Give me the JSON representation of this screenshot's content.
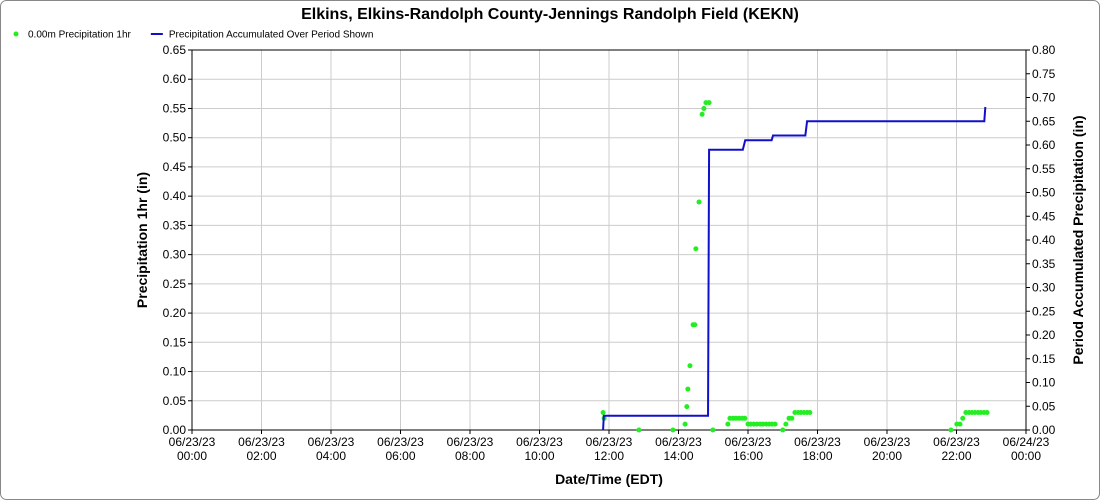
{
  "chart_data": {
    "type": "combo",
    "title": "Elkins, Elkins-Randolph County-Jennings Randolph Field (KEKN)",
    "x_label": "Date/Time (EDT)",
    "y_label": "Precipitation 1hr (in)",
    "y2_label": "Period Accumulated Precipitation (in)",
    "grid": true,
    "legend": "top-left",
    "xlim": [
      0,
      24
    ],
    "xticks": [
      {
        "value": 0,
        "label": "06/23/23 00:00"
      },
      {
        "value": 2,
        "label": "06/23/23 02:00"
      },
      {
        "value": 4,
        "label": "06/23/23 04:00"
      },
      {
        "value": 6,
        "label": "06/23/23 06:00"
      },
      {
        "value": 8,
        "label": "06/23/23 08:00"
      },
      {
        "value": 10,
        "label": "06/23/23 10:00"
      },
      {
        "value": 12,
        "label": "06/23/23 12:00"
      },
      {
        "value": 14,
        "label": "06/23/23 14:00"
      },
      {
        "value": 16,
        "label": "06/23/23 16:00"
      },
      {
        "value": 18,
        "label": "06/23/23 18:00"
      },
      {
        "value": 20,
        "label": "06/23/23 20:00"
      },
      {
        "value": 22,
        "label": "06/23/23 22:00"
      },
      {
        "value": 24,
        "label": "06/24/23 00:00"
      }
    ],
    "ylim": [
      0,
      0.65
    ],
    "yticks": [
      {
        "value": 0,
        "label": "0.00"
      },
      {
        "value": 0.05,
        "label": "0.05"
      },
      {
        "value": 0.1,
        "label": "0.10"
      },
      {
        "value": 0.15,
        "label": "0.15"
      },
      {
        "value": 0.2,
        "label": "0.20"
      },
      {
        "value": 0.25,
        "label": "0.25"
      },
      {
        "value": 0.3,
        "label": "0.30"
      },
      {
        "value": 0.35,
        "label": "0.35"
      },
      {
        "value": 0.4,
        "label": "0.40"
      },
      {
        "value": 0.45,
        "label": "0.45"
      },
      {
        "value": 0.5,
        "label": "0.50"
      },
      {
        "value": 0.55,
        "label": "0.55"
      },
      {
        "value": 0.6,
        "label": "0.60"
      },
      {
        "value": 0.65,
        "label": "0.65"
      }
    ],
    "y2lim": [
      0,
      0.8
    ],
    "y2ticks": [
      {
        "value": 0,
        "label": "0.00"
      },
      {
        "value": 0.05,
        "label": "0.05"
      },
      {
        "value": 0.1,
        "label": "0.10"
      },
      {
        "value": 0.15,
        "label": "0.15"
      },
      {
        "value": 0.2,
        "label": "0.20"
      },
      {
        "value": 0.25,
        "label": "0.25"
      },
      {
        "value": 0.3,
        "label": "0.30"
      },
      {
        "value": 0.35,
        "label": "0.35"
      },
      {
        "value": 0.4,
        "label": "0.40"
      },
      {
        "value": 0.45,
        "label": "0.45"
      },
      {
        "value": 0.5,
        "label": "0.50"
      },
      {
        "value": 0.55,
        "label": "0.55"
      },
      {
        "value": 0.6,
        "label": "0.60"
      },
      {
        "value": 0.65,
        "label": "0.65"
      },
      {
        "value": 0.7,
        "label": "0.70"
      },
      {
        "value": 0.75,
        "label": "0.75"
      },
      {
        "value": 0.8,
        "label": "0.80"
      }
    ],
    "series": [
      {
        "name": "0.00m Precipitation 1hr",
        "type": "scatter",
        "color": "#22ee22",
        "x": [
          11.83,
          11.86,
          12.86,
          13.84,
          14.19,
          14.24,
          14.27,
          14.33,
          14.42,
          14.47,
          14.5,
          14.59,
          14.68,
          14.73,
          14.79,
          14.88,
          14.99,
          15.42,
          15.48,
          15.57,
          15.65,
          15.74,
          15.83,
          15.91,
          16.0,
          16.08,
          16.17,
          16.26,
          16.35,
          16.43,
          16.52,
          16.61,
          16.69,
          16.78,
          17.0,
          17.09,
          17.18,
          17.26,
          17.35,
          17.44,
          17.52,
          17.61,
          17.7,
          17.78,
          21.84,
          22.01,
          22.1,
          22.18,
          22.27,
          22.36,
          22.44,
          22.53,
          22.62,
          22.7,
          22.79,
          22.88
        ],
        "values": [
          0.03,
          0.02,
          0,
          0,
          0.01,
          0.04,
          0.07,
          0.11,
          0.18,
          0.18,
          0.31,
          0.39,
          0.54,
          0.55,
          0.56,
          0.56,
          0,
          0.01,
          0.02,
          0.02,
          0.02,
          0.02,
          0.02,
          0.02,
          0.01,
          0.01,
          0.01,
          0.01,
          0.01,
          0.01,
          0.01,
          0.01,
          0.01,
          0.01,
          0,
          0.01,
          0.02,
          0.02,
          0.03,
          0.03,
          0.03,
          0.03,
          0.03,
          0.03,
          0,
          0.01,
          0.01,
          0.02,
          0.03,
          0.03,
          0.03,
          0.03,
          0.03,
          0.03,
          0.03,
          0.03
        ]
      },
      {
        "name": "Precipitation Accumulated Over Period Shown",
        "type": "line",
        "color": "#1010cc",
        "axis": "y2",
        "x": [
          11.83,
          11.85,
          14.85,
          14.88,
          15.85,
          15.92,
          16.68,
          16.72,
          17.65,
          17.7,
          22.8,
          22.83
        ],
        "values": [
          0,
          0.03,
          0.03,
          0.59,
          0.59,
          0.61,
          0.61,
          0.62,
          0.62,
          0.65,
          0.65,
          0.68
        ]
      }
    ]
  }
}
